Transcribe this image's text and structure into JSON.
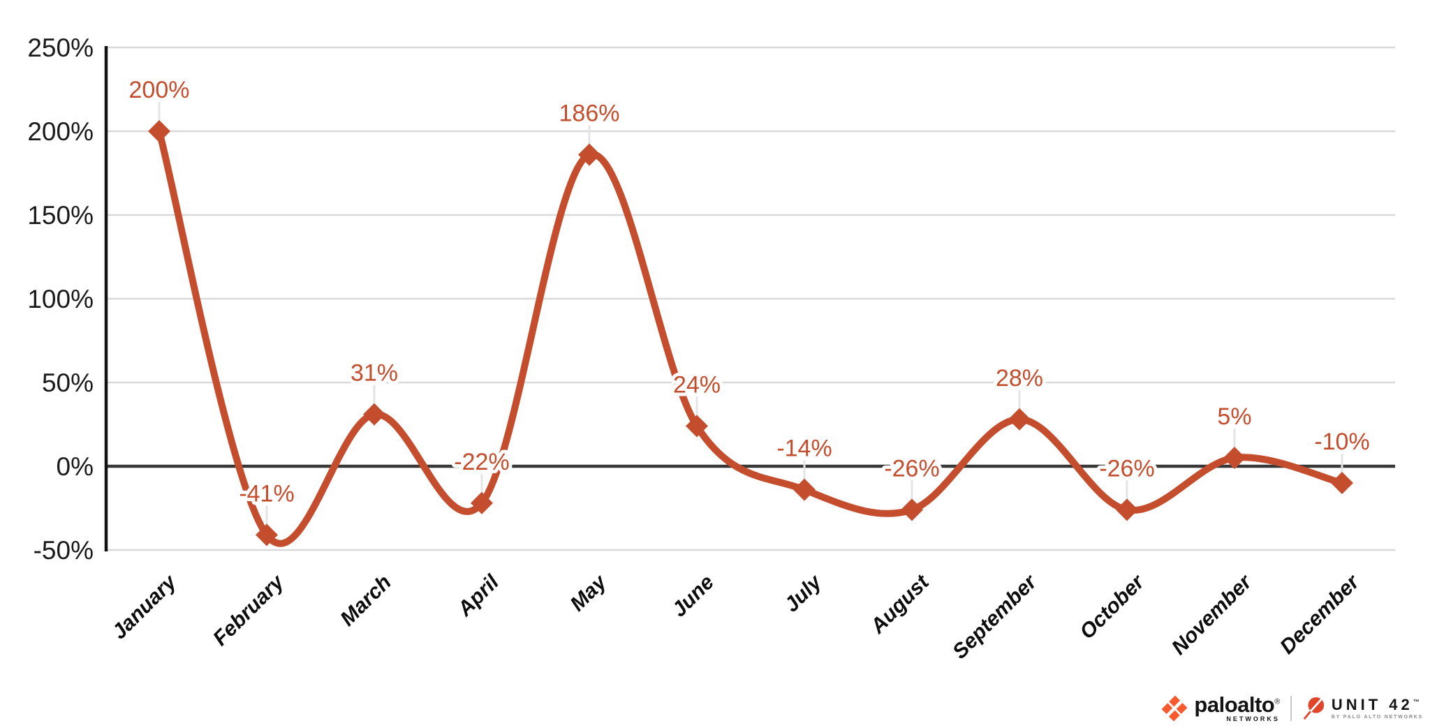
{
  "chart_data": {
    "type": "line",
    "title": "",
    "categories": [
      "January",
      "February",
      "March",
      "April",
      "May",
      "June",
      "July",
      "August",
      "September",
      "October",
      "November",
      "December"
    ],
    "series": [
      {
        "name": "monthly-percent-change",
        "values": [
          200,
          -41,
          31,
          -22,
          186,
          24,
          -14,
          -26,
          28,
          -26,
          5,
          -10
        ]
      }
    ],
    "point_labels": [
      "200%",
      "-41%",
      "31%",
      "-22%",
      "186%",
      "24%",
      "-14%",
      "-26%",
      "28%",
      "-26%",
      "5%",
      "-10%"
    ],
    "ytick_values": [
      250,
      200,
      150,
      100,
      50,
      0,
      -50
    ],
    "ytick_labels": [
      "250%",
      "200%",
      "150%",
      "100%",
      "50%",
      "0%",
      "-50%"
    ],
    "ylim": [
      -50,
      250
    ],
    "xlabel": "",
    "ylabel": "",
    "grid": true,
    "smooth": true,
    "legend": "none",
    "marker": "diamond"
  },
  "colors": {
    "line": "#C44D2D",
    "data_label": "#C44D2D",
    "grid": "#D9D9D9",
    "zero_line": "#383838",
    "axis": "#111111",
    "tick_text": "#1A1A1A",
    "month_text": "#0D0D0D",
    "leader": "#E4E4E4",
    "pan_orange": "#FA582D",
    "unit42_orange": "#E0452A",
    "background": "#FFFFFF"
  },
  "footer": {
    "paloalto": {
      "wordmark": "paloalto",
      "registered": "®",
      "networks": "NETWORKS"
    },
    "unit42": {
      "wordmark": "UNIT 42",
      "trademark": "™",
      "byline": "BY PALO ALTO NETWORKS"
    }
  }
}
